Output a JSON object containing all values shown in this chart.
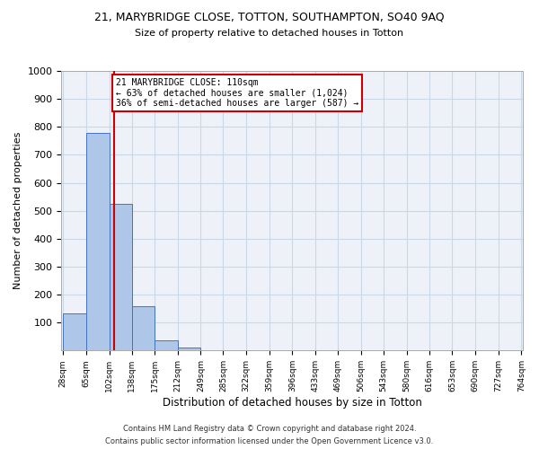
{
  "title1": "21, MARYBRIDGE CLOSE, TOTTON, SOUTHAMPTON, SO40 9AQ",
  "title2": "Size of property relative to detached houses in Totton",
  "xlabel": "Distribution of detached houses by size in Totton",
  "ylabel": "Number of detached properties",
  "footnote1": "Contains HM Land Registry data © Crown copyright and database right 2024.",
  "footnote2": "Contains public sector information licensed under the Open Government Licence v3.0.",
  "bar_edges": [
    28,
    65,
    102,
    138,
    175,
    212,
    249,
    285,
    322,
    359,
    396,
    433,
    469,
    506,
    543,
    580,
    616,
    653,
    690,
    727,
    764
  ],
  "bar_heights": [
    133,
    778,
    524,
    158,
    36,
    12,
    0,
    0,
    0,
    0,
    0,
    0,
    0,
    0,
    0,
    0,
    0,
    0,
    0,
    0
  ],
  "bar_color": "#aec6e8",
  "bar_edgecolor": "#4472c4",
  "grid_color": "#c8d8e8",
  "background_color": "#eef2f8",
  "vline_x": 110,
  "vline_color": "#cc0000",
  "annotation_line1": "21 MARYBRIDGE CLOSE: 110sqm",
  "annotation_line2": "← 63% of detached houses are smaller (1,024)",
  "annotation_line3": "36% of semi-detached houses are larger (587) →",
  "annotation_box_color": "#cc0000",
  "ylim": [
    0,
    1000
  ],
  "yticks": [
    0,
    100,
    200,
    300,
    400,
    500,
    600,
    700,
    800,
    900,
    1000
  ],
  "title1_fontsize": 9,
  "title2_fontsize": 8,
  "ylabel_fontsize": 8,
  "xlabel_fontsize": 8.5,
  "footnote_fontsize": 6,
  "ytick_fontsize": 8,
  "xtick_fontsize": 6.5
}
